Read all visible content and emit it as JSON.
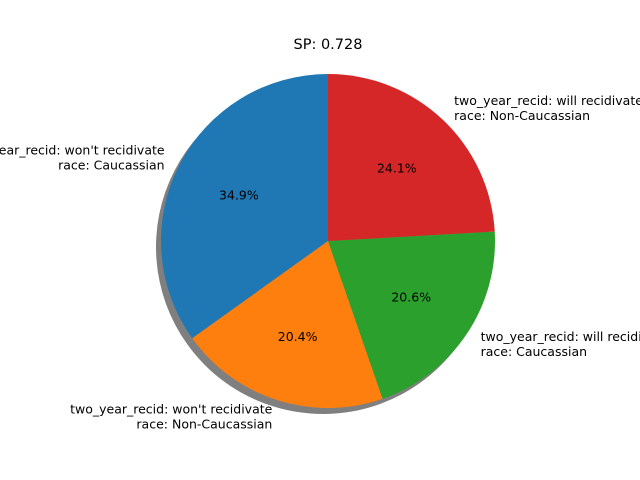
{
  "chart_data": {
    "type": "pie",
    "title": "SP: 0.728",
    "shadow": true,
    "start_angle_deg": 90,
    "direction": "counterclockwise",
    "slices": [
      {
        "label_lines": [
          "two_year_recid: won't recidivate",
          "race: Caucassian"
        ],
        "value": 34.9,
        "pct_label": "34.9%",
        "color": "#1f77b4"
      },
      {
        "label_lines": [
          "two_year_recid: won't recidivate",
          "race: Non-Caucassian"
        ],
        "value": 20.4,
        "pct_label": "20.4%",
        "color": "#ff7f0e"
      },
      {
        "label_lines": [
          "two_year_recid: will recidivate",
          "race: Caucassian"
        ],
        "value": 20.6,
        "pct_label": "20.6%",
        "color": "#2ca02c"
      },
      {
        "label_lines": [
          "two_year_recid: will recidivate",
          "race: Non-Caucassian"
        ],
        "value": 24.1,
        "pct_label": "24.1%",
        "color": "#d62728"
      }
    ]
  }
}
